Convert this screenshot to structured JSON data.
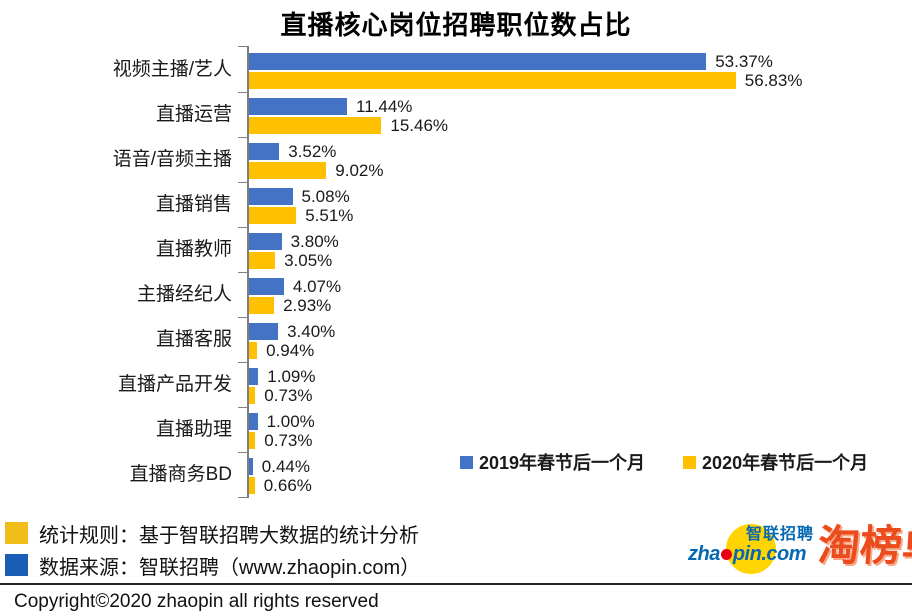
{
  "title": "直播核心岗位招聘职位数占比",
  "chart_data": {
    "type": "bar",
    "orientation": "horizontal",
    "title": "直播核心岗位招聘职位数占比",
    "xmax": 60,
    "grid": false,
    "legend_position": "bottom-right",
    "categories": [
      "视频主播/艺人",
      "直播运营",
      "语音/音频主播",
      "直播销售",
      "直播教师",
      "主播经纪人",
      "直播客服",
      "直播产品开发",
      "直播助理",
      "直播商务BD"
    ],
    "series": [
      {
        "name": "2019年春节后一个月",
        "color": "#4472c4",
        "values": [
          53.37,
          11.44,
          3.52,
          5.08,
          3.8,
          4.07,
          3.4,
          1.09,
          1.0,
          0.44
        ]
      },
      {
        "name": "2020年春节后一个月",
        "color": "#ffc000",
        "values": [
          56.83,
          15.46,
          9.02,
          5.51,
          3.05,
          2.93,
          0.94,
          0.73,
          0.73,
          0.66
        ]
      }
    ],
    "rows": [
      {
        "category": "视频主播/艺人",
        "v2019": 53.37,
        "v2019_label": "53.37%",
        "v2020": 56.83,
        "v2020_label": "56.83%"
      },
      {
        "category": "直播运营",
        "v2019": 11.44,
        "v2019_label": "11.44%",
        "v2020": 15.46,
        "v2020_label": "15.46%"
      },
      {
        "category": "语音/音频主播",
        "v2019": 3.52,
        "v2019_label": "3.52%",
        "v2020": 9.02,
        "v2020_label": "9.02%"
      },
      {
        "category": "直播销售",
        "v2019": 5.08,
        "v2019_label": "5.08%",
        "v2020": 5.51,
        "v2020_label": "5.51%"
      },
      {
        "category": "直播教师",
        "v2019": 3.8,
        "v2019_label": "3.80%",
        "v2020": 3.05,
        "v2020_label": "3.05%"
      },
      {
        "category": "主播经纪人",
        "v2019": 4.07,
        "v2019_label": "4.07%",
        "v2020": 2.93,
        "v2020_label": "2.93%"
      },
      {
        "category": "直播客服",
        "v2019": 3.4,
        "v2019_label": "3.40%",
        "v2020": 0.94,
        "v2020_label": "0.94%"
      },
      {
        "category": "直播产品开发",
        "v2019": 1.09,
        "v2019_label": "1.09%",
        "v2020": 0.73,
        "v2020_label": "0.73%"
      },
      {
        "category": "直播助理",
        "v2019": 1.0,
        "v2019_label": "1.00%",
        "v2020": 0.73,
        "v2020_label": "0.73%"
      },
      {
        "category": "直播商务BD",
        "v2019": 0.44,
        "v2019_label": "0.44%",
        "v2020": 0.66,
        "v2020_label": "0.66%"
      }
    ]
  },
  "legend": [
    {
      "label": "2019年春节后一个月",
      "color": "#4472c4"
    },
    {
      "label": "2020年春节后一个月",
      "color": "#ffc000"
    }
  ],
  "notes": [
    {
      "marker_color": "#f0bc17",
      "text": "统计规则：基于智联招聘大数据的统计分析"
    },
    {
      "marker_color": "#1a5db5",
      "text": "数据来源：智联招聘（www.zhaopin.com）"
    }
  ],
  "logos": {
    "zhaopin": {
      "brand_cn": "智联招聘",
      "brand_en_left": "zha",
      "brand_en_right": "pin.com"
    },
    "taobangdan": "淘榜单"
  },
  "footer": {
    "copyright": "Copyright©2020 zhaopin all rights reserved"
  },
  "colors": {
    "bar_2019": "#4472c4",
    "bar_2020": "#ffc000",
    "axis": "#7f7f7f"
  }
}
